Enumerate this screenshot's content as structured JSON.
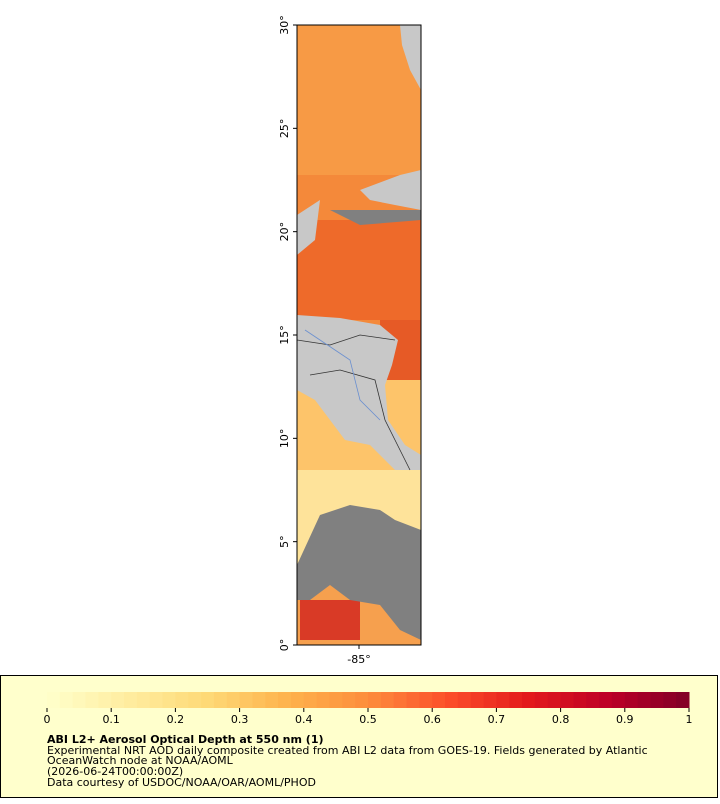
{
  "map": {
    "ylim": [
      0,
      30
    ],
    "yticks": [
      {
        "value": 0,
        "label": "0°"
      },
      {
        "value": 5,
        "label": "5°"
      },
      {
        "value": 10,
        "label": "10°"
      },
      {
        "value": 15,
        "label": "15°"
      },
      {
        "value": 20,
        "label": "20°"
      },
      {
        "value": 25,
        "label": "25°"
      },
      {
        "value": 30,
        "label": "30°"
      }
    ],
    "xlim": [
      -88,
      -82
    ],
    "xticks": [
      {
        "value": -85,
        "label": "-85°"
      }
    ]
  },
  "colorbar": {
    "lim": [
      0,
      1
    ],
    "ticks": [
      0,
      0.1,
      0.2,
      0.3,
      0.4,
      0.5,
      0.6,
      0.7,
      0.8,
      0.9,
      1
    ],
    "colors": [
      "#ffffcc",
      "#ffeda0",
      "#fed976",
      "#feb24c",
      "#fd8d3c",
      "#fc4e2a",
      "#e31a1c",
      "#bd0026",
      "#800026"
    ]
  },
  "legend": {
    "title": "ABI L2+ Aerosol Optical Depth at 550 nm (1)",
    "lines": [
      "Experimental NRT AOD daily composite created from ABI L2 data from GOES-19. Fields generated by Atlantic",
      "OceanWatch node at NOAA/AOML",
      "(2026-06-24T00:00:00Z)",
      "Data courtesy of USDOC/NOAA/OAR/AOML/PHOD"
    ]
  }
}
